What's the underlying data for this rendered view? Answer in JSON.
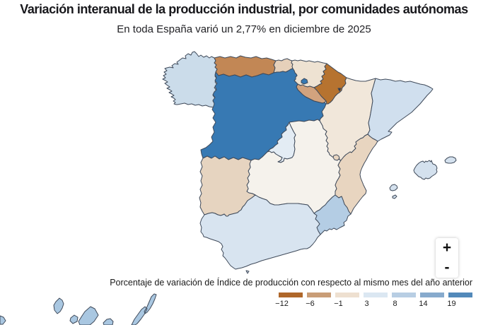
{
  "title": "Variación interanual de la producción industrial, por comunidades autónomas",
  "subtitle": "En toda España varió un 2,77% en diciembre de 2025",
  "legend": {
    "caption": "Porcentaje de variación de Índice de producción con respecto al mismo mes del año anterior",
    "classes": [
      {
        "label": "−12",
        "color": "#af672a"
      },
      {
        "label": "−6",
        "color": "#c99d77"
      },
      {
        "label": "−1",
        "color": "#eee0d0"
      },
      {
        "label": "3",
        "color": "#dbe7f2"
      },
      {
        "label": "8",
        "color": "#b8cee3"
      },
      {
        "label": "14",
        "color": "#87aacd"
      },
      {
        "label": "19",
        "color": "#5289ba"
      }
    ]
  },
  "zoom_controls": {
    "zoom_in_label": "+",
    "zoom_out_label": "-"
  },
  "map": {
    "border_color": "#3f4a5a",
    "regions": [
      {
        "id": "galicia",
        "name": "Galicia",
        "color": "#cbdcea"
      },
      {
        "id": "asturias",
        "name": "Principado de Asturias",
        "color": "#c28755"
      },
      {
        "id": "cantabria",
        "name": "Cantabria",
        "color": "#e6d0ba"
      },
      {
        "id": "pais-vasco",
        "name": "País Vasco",
        "color": "#eee2d2"
      },
      {
        "id": "navarra",
        "name": "Comunidad Foral de Navarra",
        "color": "#b67330"
      },
      {
        "id": "la-rioja",
        "name": "La Rioja",
        "color": "#d2a37e"
      },
      {
        "id": "aragon",
        "name": "Aragón",
        "color": "#f1e7da"
      },
      {
        "id": "cataluna",
        "name": "Cataluña",
        "color": "#d0dfee"
      },
      {
        "id": "castilla-y-leon",
        "name": "Castilla y León",
        "color": "#3779b3"
      },
      {
        "id": "madrid",
        "name": "Comunidad de Madrid",
        "color": "#e3ecf4"
      },
      {
        "id": "castilla-la-mancha",
        "name": "Castilla-La Mancha",
        "color": "#f5f2ec"
      },
      {
        "id": "extremadura",
        "name": "Extremadura",
        "color": "#e6d4c0"
      },
      {
        "id": "valencia",
        "name": "Comunitat Valenciana",
        "color": "#e8d5c0"
      },
      {
        "id": "murcia",
        "name": "Región de Murcia",
        "color": "#b4cde4"
      },
      {
        "id": "andalucia",
        "name": "Andalucía",
        "color": "#d8e4f0"
      },
      {
        "id": "baleares",
        "name": "Illes Balears",
        "color": "#d4e1ee"
      },
      {
        "id": "canarias",
        "name": "Canarias",
        "color": "#a9c7e1"
      },
      {
        "id": "petilla",
        "name": "Petilla de Aragón (enclave de Navarra)",
        "color": "#2b3442"
      }
    ]
  }
}
